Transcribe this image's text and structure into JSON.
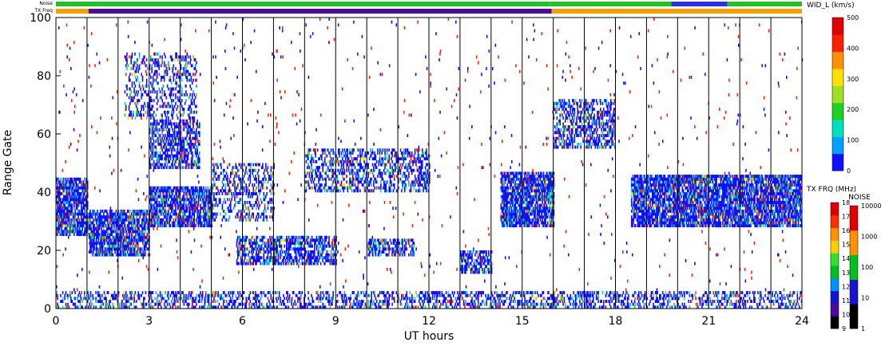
{
  "chart_data": {
    "type": "heatmap",
    "title": "",
    "xlabel": "UT hours",
    "ylabel": "Range Gate",
    "xlim": [
      0,
      24
    ],
    "ylim": [
      0,
      100
    ],
    "x_ticks": [
      "0",
      "3",
      "6",
      "9",
      "12",
      "15",
      "18",
      "21",
      "24"
    ],
    "y_ticks": [
      "0",
      "20",
      "40",
      "60",
      "80",
      "100"
    ],
    "hour_gridlines": true,
    "status_bars": [
      {
        "label": "Noise",
        "segments": [
          {
            "from": 0,
            "to": 15.9,
            "color": "#22c02a"
          },
          {
            "from": 15.9,
            "to": 19.8,
            "color": "#22c02a"
          },
          {
            "from": 19.8,
            "to": 21.6,
            "color": "#3030dd"
          },
          {
            "from": 21.6,
            "to": 24,
            "color": "#22c02a"
          }
        ]
      },
      {
        "label": "TX Freq",
        "segments": [
          {
            "from": 0,
            "to": 1.05,
            "color": "#f5a000"
          },
          {
            "from": 1.05,
            "to": 15.95,
            "color": "#4b0a9a"
          },
          {
            "from": 15.95,
            "to": 24,
            "color": "#f5a000"
          }
        ]
      }
    ],
    "features": [
      {
        "name": "band-0h",
        "x": [
          0,
          1
        ],
        "y": [
          25,
          45
        ],
        "density": 0.8
      },
      {
        "name": "band-1h-3h",
        "x": [
          1.05,
          3
        ],
        "y": [
          18,
          34
        ],
        "density": 0.8
      },
      {
        "name": "band-3h-5h",
        "x": [
          3,
          5
        ],
        "y": [
          28,
          42
        ],
        "density": 0.75
      },
      {
        "name": "band-5h-7h",
        "x": [
          5,
          7
        ],
        "y": [
          30,
          50
        ],
        "density": 0.35
      },
      {
        "name": "band-6h-9h-upper",
        "x": [
          5.8,
          9
        ],
        "y": [
          15,
          25
        ],
        "density": 0.6
      },
      {
        "name": "band-9h-12h",
        "x": [
          8,
          12
        ],
        "y": [
          40,
          55
        ],
        "density": 0.45
      },
      {
        "name": "band-10h-11h",
        "x": [
          10,
          11.5
        ],
        "y": [
          18,
          24
        ],
        "density": 0.6
      },
      {
        "name": "band-13h",
        "x": [
          13,
          14
        ],
        "y": [
          12,
          20
        ],
        "density": 0.6
      },
      {
        "name": "band-14h-16h",
        "x": [
          14.3,
          16
        ],
        "y": [
          28,
          47
        ],
        "density": 0.8
      },
      {
        "name": "band-16h-18h-upper",
        "x": [
          16,
          18
        ],
        "y": [
          55,
          72
        ],
        "density": 0.5
      },
      {
        "name": "band-18h-24h",
        "x": [
          18.5,
          24
        ],
        "y": [
          28,
          46
        ],
        "density": 0.8
      },
      {
        "name": "patch-3h-4h-high",
        "x": [
          2.2,
          4.5
        ],
        "y": [
          65,
          88
        ],
        "density": 0.3
      },
      {
        "name": "patch-3h-5h-mid",
        "x": [
          3,
          4.6
        ],
        "y": [
          48,
          65
        ],
        "density": 0.6
      },
      {
        "name": "near-zero-band",
        "x": [
          0,
          24
        ],
        "y": [
          0,
          6
        ],
        "density": 0.4
      }
    ]
  },
  "colorbars": {
    "width": {
      "title": "WID_L (km/s)",
      "ticks": [
        "0",
        "100",
        "200",
        "300",
        "400",
        "500"
      ],
      "colors": [
        "#1010ff",
        "#00a0ff",
        "#00e0c0",
        "#20d020",
        "#a0e020",
        "#ffe000",
        "#ff9000",
        "#ff2000",
        "#e00000"
      ]
    },
    "txfreq": {
      "title": "TX FRQ (MHz)",
      "ticks": [
        "9",
        "10",
        "11",
        "12",
        "13",
        "14",
        "15",
        "16",
        "17",
        "18"
      ],
      "colors": [
        "#000000",
        "#4b0a9a",
        "#1515d0",
        "#0090ff",
        "#00c020",
        "#30e030",
        "#ffd000",
        "#ff9000",
        "#ff3000",
        "#e00000"
      ]
    },
    "noise": {
      "title": "NOISE",
      "ticks": [
        "1",
        "10",
        "100",
        "1000",
        "10000"
      ],
      "colors": [
        "#000000",
        "#1515d0",
        "#00c020",
        "#ff9000",
        "#e00000"
      ]
    }
  }
}
